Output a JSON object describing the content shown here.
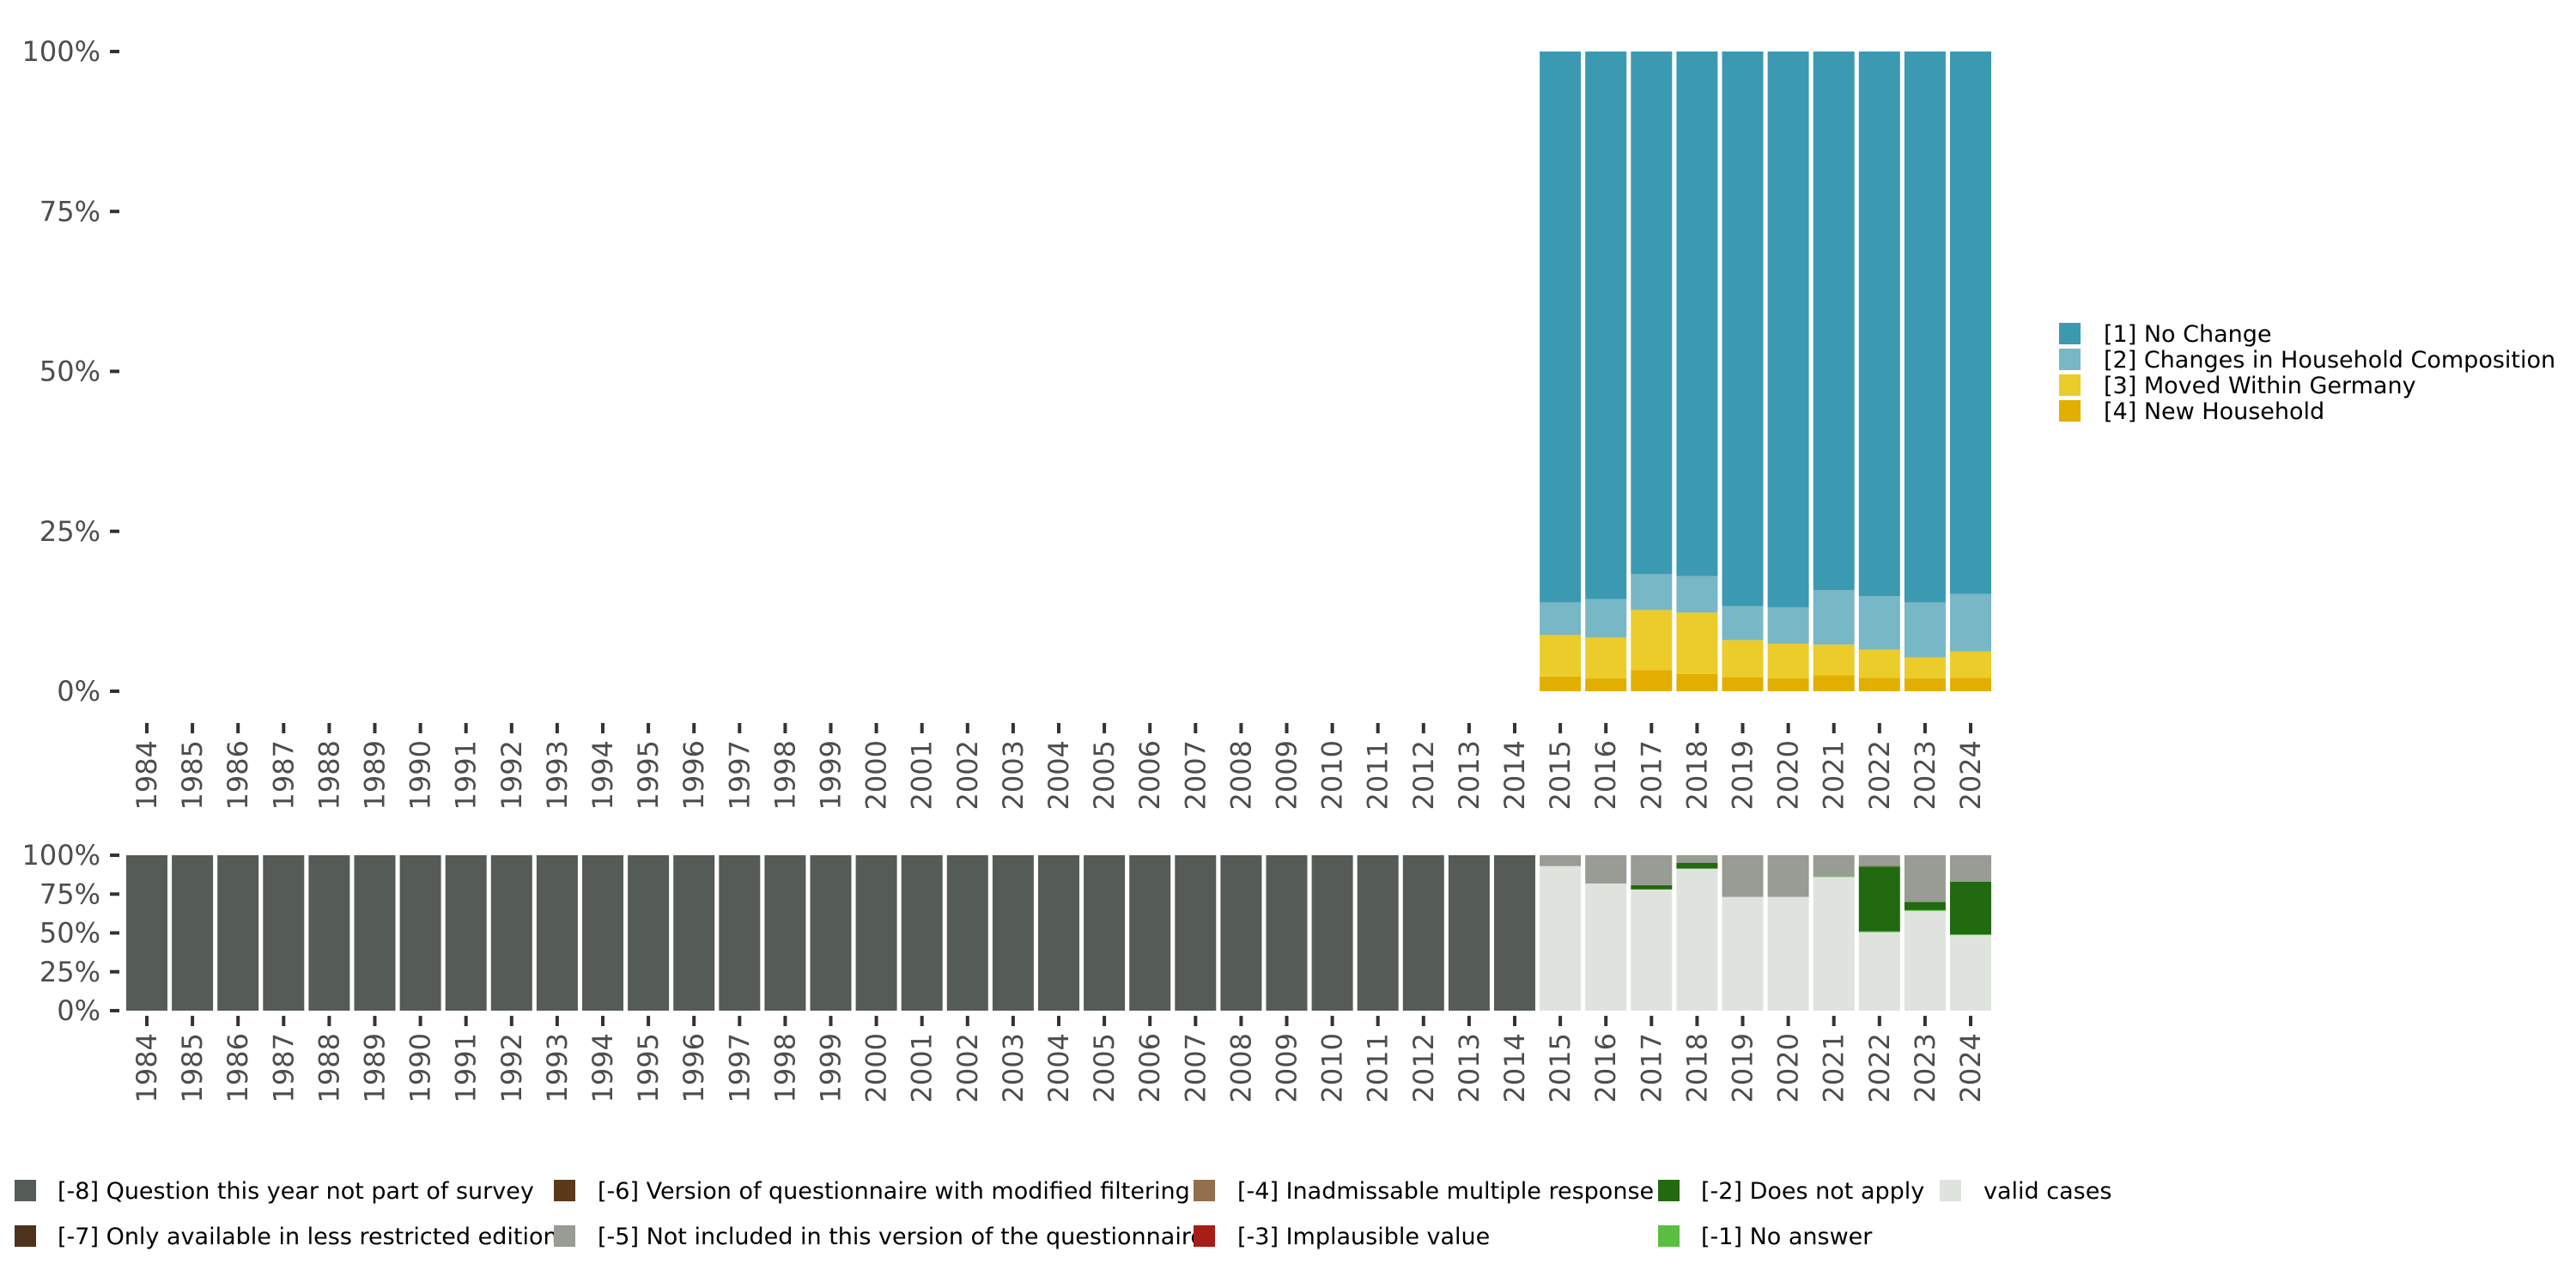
{
  "chart_data": [
    {
      "id": "distribution",
      "type": "bar",
      "stacked": true,
      "title": "",
      "xlabel": "",
      "ylabel": "",
      "ylim": [
        0,
        100
      ],
      "y_tick_labels": [
        "0%",
        "25%",
        "50%",
        "75%",
        "100%"
      ],
      "y_ticks": [
        0,
        25,
        50,
        75,
        100
      ],
      "grid": false,
      "legend_position": "right",
      "categories": [
        "1984",
        "1985",
        "1986",
        "1987",
        "1988",
        "1989",
        "1990",
        "1991",
        "1992",
        "1993",
        "1994",
        "1995",
        "1996",
        "1997",
        "1998",
        "1999",
        "2000",
        "2001",
        "2002",
        "2003",
        "2004",
        "2005",
        "2006",
        "2007",
        "2008",
        "2009",
        "2010",
        "2011",
        "2012",
        "2013",
        "2014",
        "2015",
        "2016",
        "2017",
        "2018",
        "2019",
        "2020",
        "2021",
        "2022",
        "2023",
        "2024"
      ],
      "series": [
        {
          "name": "[4] New Household",
          "color": "#E2AF00",
          "values": [
            null,
            null,
            null,
            null,
            null,
            null,
            null,
            null,
            null,
            null,
            null,
            null,
            null,
            null,
            null,
            null,
            null,
            null,
            null,
            null,
            null,
            null,
            null,
            null,
            null,
            null,
            null,
            null,
            null,
            null,
            null,
            2.3,
            2.0,
            3.3,
            2.7,
            2.2,
            2.0,
            2.5,
            2.1,
            2.0,
            2.1
          ]
        },
        {
          "name": "[3] Moved Within Germany",
          "color": "#EBCC2A",
          "values": [
            null,
            null,
            null,
            null,
            null,
            null,
            null,
            null,
            null,
            null,
            null,
            null,
            null,
            null,
            null,
            null,
            null,
            null,
            null,
            null,
            null,
            null,
            null,
            null,
            null,
            null,
            null,
            null,
            null,
            null,
            null,
            6.5,
            6.4,
            9.4,
            9.6,
            5.8,
            5.4,
            4.8,
            4.4,
            3.3,
            4.1
          ]
        },
        {
          "name": "[2] Changes in Household Composition",
          "color": "#78B7C5",
          "values": [
            null,
            null,
            null,
            null,
            null,
            null,
            null,
            null,
            null,
            null,
            null,
            null,
            null,
            null,
            null,
            null,
            null,
            null,
            null,
            null,
            null,
            null,
            null,
            null,
            null,
            null,
            null,
            null,
            null,
            null,
            null,
            5.1,
            6.0,
            5.6,
            5.7,
            5.3,
            5.7,
            8.5,
            8.4,
            8.6,
            9.0
          ]
        },
        {
          "name": "[1] No Change",
          "color": "#3B9AB2",
          "values": [
            null,
            null,
            null,
            null,
            null,
            null,
            null,
            null,
            null,
            null,
            null,
            null,
            null,
            null,
            null,
            null,
            null,
            null,
            null,
            null,
            null,
            null,
            null,
            null,
            null,
            null,
            null,
            null,
            null,
            null,
            null,
            86.1,
            85.6,
            81.7,
            82.0,
            86.7,
            86.9,
            84.2,
            85.1,
            86.1,
            84.8
          ]
        }
      ],
      "legend": [
        {
          "label": "[1] No Change",
          "color": "#3B9AB2"
        },
        {
          "label": "[2] Changes in Household Composition",
          "color": "#78B7C5"
        },
        {
          "label": "[3] Moved Within Germany",
          "color": "#EBCC2A"
        },
        {
          "label": "[4] New Household",
          "color": "#E2AF00"
        }
      ]
    },
    {
      "id": "missings",
      "type": "bar",
      "stacked": true,
      "title": "",
      "xlabel": "",
      "ylabel": "",
      "ylim": [
        0,
        100
      ],
      "y_tick_labels": [
        "0%",
        "25%",
        "50%",
        "75%",
        "100%"
      ],
      "y_ticks": [
        0,
        25,
        50,
        75,
        100
      ],
      "grid": false,
      "legend_position": "bottom",
      "categories": [
        "1984",
        "1985",
        "1986",
        "1987",
        "1988",
        "1989",
        "1990",
        "1991",
        "1992",
        "1993",
        "1994",
        "1995",
        "1996",
        "1997",
        "1998",
        "1999",
        "2000",
        "2001",
        "2002",
        "2003",
        "2004",
        "2005",
        "2006",
        "2007",
        "2008",
        "2009",
        "2010",
        "2011",
        "2012",
        "2013",
        "2014",
        "2015",
        "2016",
        "2017",
        "2018",
        "2019",
        "2020",
        "2021",
        "2022",
        "2023",
        "2024"
      ],
      "series": [
        {
          "name": "valid cases",
          "color": "#DFE3DE",
          "values": [
            0,
            0,
            0,
            0,
            0,
            0,
            0,
            0,
            0,
            0,
            0,
            0,
            0,
            0,
            0,
            0,
            0,
            0,
            0,
            0,
            0,
            0,
            0,
            0,
            0,
            0,
            0,
            0,
            0,
            0,
            0,
            93.0,
            81.8,
            78.0,
            91.4,
            73.2,
            73.2,
            86.0,
            50.5,
            64.2,
            48.6
          ]
        },
        {
          "name": "[-1] No answer",
          "color": "#5BBD41",
          "values": [
            0,
            0,
            0,
            0,
            0,
            0,
            0,
            0,
            0,
            0,
            0,
            0,
            0,
            0,
            0,
            0,
            0,
            0,
            0,
            0,
            0,
            0,
            0,
            0,
            0,
            0,
            0,
            0,
            0,
            0,
            0,
            0,
            0,
            0,
            0,
            0,
            0,
            0.4,
            0.5,
            0.5,
            0.5
          ]
        },
        {
          "name": "[-2] Does not apply",
          "color": "#216A10",
          "values": [
            0,
            0,
            0,
            0,
            0,
            0,
            0,
            0,
            0,
            0,
            0,
            0,
            0,
            0,
            0,
            0,
            0,
            0,
            0,
            0,
            0,
            0,
            0,
            0,
            0,
            0,
            0,
            0,
            0,
            0,
            0,
            0,
            0,
            2.7,
            3.8,
            0,
            0,
            0,
            41.7,
            5.3,
            33.8
          ]
        },
        {
          "name": "[-3] Implausible value",
          "color": "#A71D17",
          "values": [
            0,
            0,
            0,
            0,
            0,
            0,
            0,
            0,
            0,
            0,
            0,
            0,
            0,
            0,
            0,
            0,
            0,
            0,
            0,
            0,
            0,
            0,
            0,
            0,
            0,
            0,
            0,
            0,
            0,
            0,
            0,
            0,
            0,
            0,
            0,
            0,
            0,
            0,
            0,
            0,
            0
          ]
        },
        {
          "name": "[-4] Inadmissable multiple response",
          "color": "#936F4E",
          "values": [
            0,
            0,
            0,
            0,
            0,
            0,
            0,
            0,
            0,
            0,
            0,
            0,
            0,
            0,
            0,
            0,
            0,
            0,
            0,
            0,
            0,
            0,
            0,
            0,
            0,
            0,
            0,
            0,
            0,
            0,
            0,
            0,
            0,
            0,
            0,
            0,
            0,
            0,
            0.4,
            0,
            0
          ]
        },
        {
          "name": "[-5] Not included in this version of the questionnaire",
          "color": "#989C94",
          "values": [
            0,
            0,
            0,
            0,
            0,
            0,
            0,
            0,
            0,
            0,
            0,
            0,
            0,
            0,
            0,
            0,
            0,
            0,
            0,
            0,
            0,
            0,
            0,
            0,
            0,
            0,
            0,
            0,
            0,
            0,
            0,
            7.0,
            18.2,
            19.3,
            4.8,
            26.8,
            26.8,
            13.6,
            6.9,
            30.0,
            17.1
          ]
        },
        {
          "name": "[-6] Version of questionnaire with modified filtering",
          "color": "#5A3A1A",
          "values": [
            0,
            0,
            0,
            0,
            0,
            0,
            0,
            0,
            0,
            0,
            0,
            0,
            0,
            0,
            0,
            0,
            0,
            0,
            0,
            0,
            0,
            0,
            0,
            0,
            0,
            0,
            0,
            0,
            0,
            0,
            0,
            0,
            0,
            0,
            0,
            0,
            0,
            0,
            0,
            0,
            0
          ]
        },
        {
          "name": "[-7] Only available in less restricted edition",
          "color": "#4E321C",
          "values": [
            0,
            0,
            0,
            0,
            0,
            0,
            0,
            0,
            0,
            0,
            0,
            0,
            0,
            0,
            0,
            0,
            0,
            0,
            0,
            0,
            0,
            0,
            0,
            0,
            0,
            0,
            0,
            0,
            0,
            0,
            0,
            0,
            0,
            0,
            0,
            0,
            0,
            0,
            0,
            0,
            0
          ]
        },
        {
          "name": "[-8] Question this year not part of survey",
          "color": "#555B55",
          "values": [
            100,
            100,
            100,
            100,
            100,
            100,
            100,
            100,
            100,
            100,
            100,
            100,
            100,
            100,
            100,
            100,
            100,
            100,
            100,
            100,
            100,
            100,
            100,
            100,
            100,
            100,
            100,
            100,
            100,
            100,
            100,
            0,
            0,
            0,
            0,
            0,
            0,
            0,
            0,
            0,
            0
          ]
        }
      ],
      "legend_rows": [
        [
          {
            "label": "[-8] Question this year not part of survey",
            "color": "#555B55"
          },
          {
            "label": "[-6] Version of questionnaire with modified filtering",
            "color": "#5A3A1A"
          },
          {
            "label": "[-4] Inadmissable multiple response",
            "color": "#936F4E"
          },
          {
            "label": "[-2] Does not apply",
            "color": "#216A10"
          },
          {
            "label": "valid cases",
            "color": "#DFE3DE"
          }
        ],
        [
          {
            "label": "[-7] Only available in less restricted edition",
            "color": "#4E321C"
          },
          {
            "label": "[-5] Not included in this version of the questionnaire",
            "color": "#989C94"
          },
          {
            "label": "[-3] Implausible value",
            "color": "#A71D17"
          },
          {
            "label": "[-1] No answer",
            "color": "#5BBD41"
          },
          null
        ]
      ]
    }
  ]
}
